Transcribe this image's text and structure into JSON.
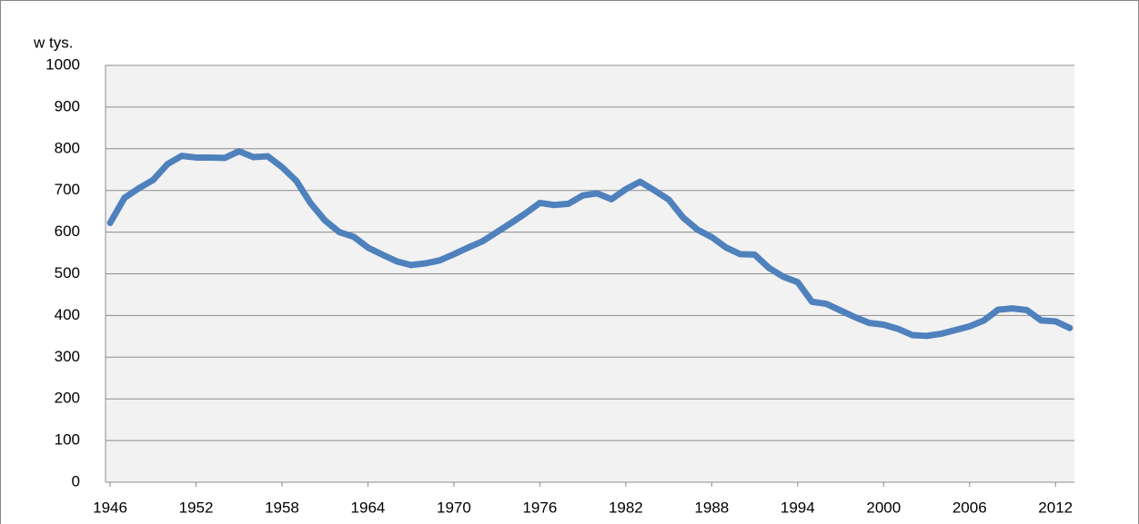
{
  "chart_data": {
    "type": "line",
    "ylabel": "w tys.",
    "x": [
      1946,
      1947,
      1948,
      1949,
      1950,
      1951,
      1952,
      1953,
      1954,
      1955,
      1956,
      1957,
      1958,
      1959,
      1960,
      1961,
      1962,
      1963,
      1964,
      1965,
      1966,
      1967,
      1968,
      1969,
      1970,
      1971,
      1972,
      1973,
      1974,
      1975,
      1976,
      1977,
      1978,
      1979,
      1980,
      1981,
      1982,
      1983,
      1984,
      1985,
      1986,
      1987,
      1988,
      1989,
      1990,
      1991,
      1992,
      1993,
      1994,
      1995,
      1996,
      1997,
      1998,
      1999,
      2000,
      2001,
      2002,
      2003,
      2004,
      2005,
      2006,
      2007,
      2008,
      2009,
      2010,
      2011,
      2012,
      2013
    ],
    "values": [
      622,
      682,
      705,
      725,
      763,
      783,
      779,
      779,
      778,
      794,
      780,
      782,
      756,
      723,
      669,
      628,
      600,
      589,
      563,
      546,
      530,
      521,
      525,
      532,
      547,
      563,
      578,
      600,
      622,
      645,
      670,
      665,
      668,
      688,
      693,
      679,
      703,
      721,
      700,
      678,
      635,
      606,
      588,
      563,
      547,
      546,
      514,
      493,
      480,
      433,
      428,
      412,
      396,
      382,
      378,
      368,
      353,
      351,
      356,
      365,
      374,
      388,
      414,
      417,
      413,
      388,
      386,
      370
    ],
    "color": "#4f81bd",
    "xlim": [
      1945.68,
      2013.32
    ],
    "xticks": [
      1946,
      1952,
      1958,
      1964,
      1970,
      1976,
      1982,
      1988,
      1994,
      2000,
      2006,
      2012
    ],
    "ylim": [
      0,
      1000
    ],
    "yticks": [
      0,
      100,
      200,
      300,
      400,
      500,
      600,
      700,
      800,
      900,
      1000
    ],
    "grid": true
  }
}
